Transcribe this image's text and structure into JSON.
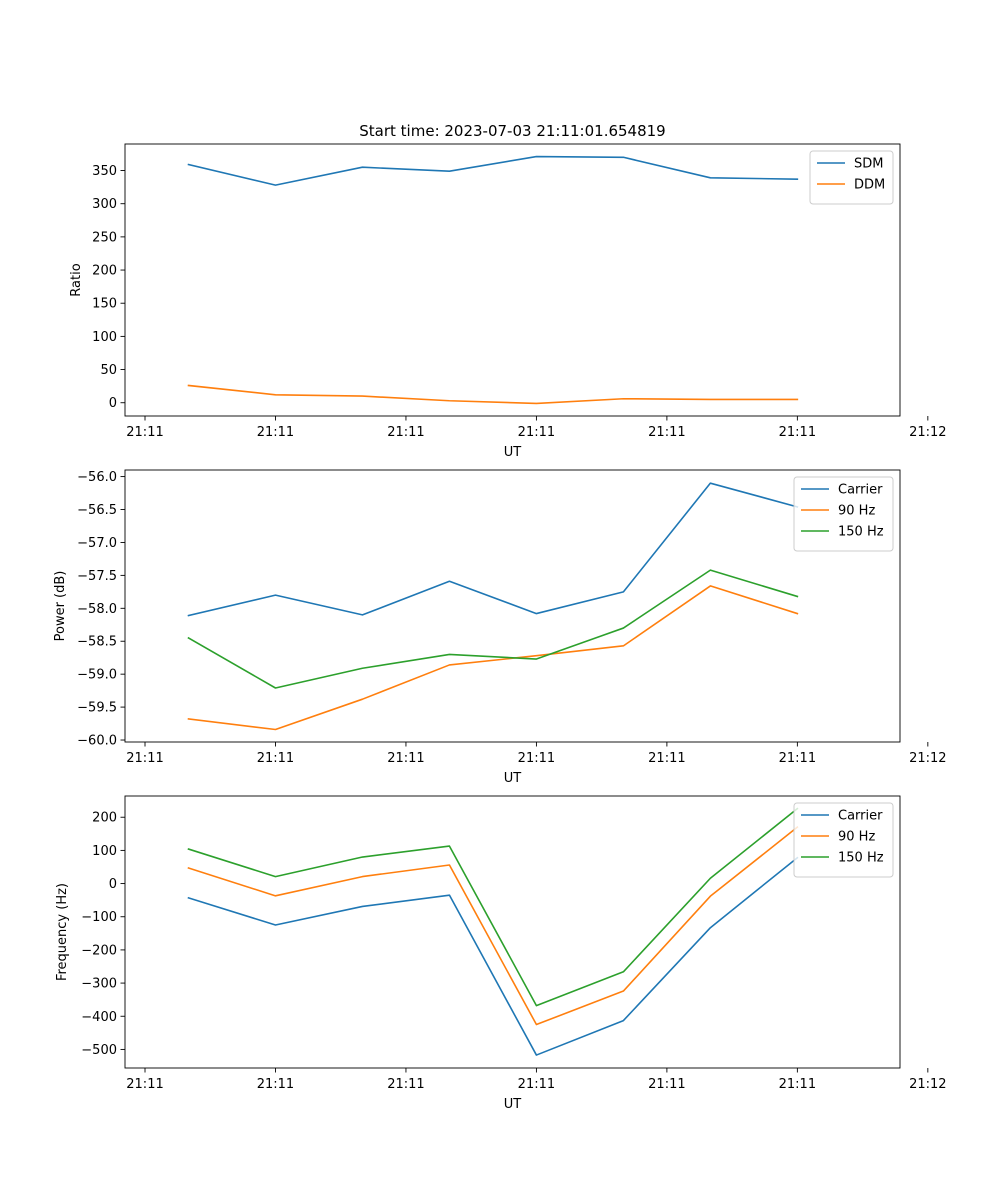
{
  "figure_title": "Start time: 2023-07-03 21:11:01.654819",
  "colors": {
    "blue": "#1f77b4",
    "orange": "#ff7f0e",
    "green": "#2ca02c"
  },
  "chart_data": [
    {
      "type": "line",
      "title": "Start time: 2023-07-03 21:11:01.654819",
      "xlabel": "UT",
      "ylabel": "Ratio",
      "x": [
        1,
        2,
        3,
        4,
        5,
        6,
        7,
        8
      ],
      "xlim": [
        0.27,
        9.18
      ],
      "x_ticks": [
        0.5,
        2,
        3.5,
        5,
        6.5,
        8,
        9.5
      ],
      "x_tick_labels": [
        "21:11",
        "21:11",
        "21:11",
        "21:11",
        "21:11",
        "21:11",
        "21:12"
      ],
      "ylim": [
        -20,
        390
      ],
      "y_ticks": [
        0,
        50,
        100,
        150,
        200,
        250,
        300,
        350
      ],
      "y_tick_labels": [
        "0",
        "50",
        "100",
        "150",
        "200",
        "250",
        "300",
        "350"
      ],
      "legend_position": "top-right",
      "grid": false,
      "series": [
        {
          "name": "SDM",
          "color": "#1f77b4",
          "values": [
            359,
            328,
            355,
            349,
            371,
            370,
            339,
            337
          ]
        },
        {
          "name": "DDM",
          "color": "#ff7f0e",
          "values": [
            26,
            12,
            10,
            3,
            -1,
            6,
            5,
            5
          ]
        }
      ]
    },
    {
      "type": "line",
      "title": "",
      "xlabel": "UT",
      "ylabel": "Power (dB)",
      "x": [
        1,
        2,
        3,
        4,
        5,
        6,
        7,
        8
      ],
      "xlim": [
        0.27,
        9.18
      ],
      "x_ticks": [
        0.5,
        2,
        3.5,
        5,
        6.5,
        8,
        9.5
      ],
      "x_tick_labels": [
        "21:11",
        "21:11",
        "21:11",
        "21:11",
        "21:11",
        "21:11",
        "21:12"
      ],
      "ylim": [
        -60.03,
        -55.9
      ],
      "y_ticks": [
        -60.0,
        -59.5,
        -59.0,
        -58.5,
        -58.0,
        -57.5,
        -57.0,
        -56.5,
        -56.0
      ],
      "y_tick_labels": [
        "−60.0",
        "−59.5",
        "−59.0",
        "−58.5",
        "−58.0",
        "−57.5",
        "−57.0",
        "−56.5",
        "−56.0"
      ],
      "legend_position": "top-right",
      "grid": false,
      "series": [
        {
          "name": "Carrier",
          "color": "#1f77b4",
          "values": [
            -58.11,
            -57.8,
            -58.1,
            -57.59,
            -58.08,
            -57.75,
            -56.1,
            -56.46
          ]
        },
        {
          "name": "90 Hz",
          "color": "#ff7f0e",
          "values": [
            -59.68,
            -59.84,
            -59.38,
            -58.86,
            -58.72,
            -58.57,
            -57.66,
            -58.08
          ]
        },
        {
          "name": "150 Hz",
          "color": "#2ca02c",
          "values": [
            -58.45,
            -59.21,
            -58.91,
            -58.7,
            -58.77,
            -58.3,
            -57.42,
            -57.82
          ]
        }
      ]
    },
    {
      "type": "line",
      "title": "",
      "xlabel": "UT",
      "ylabel": "Frequency (Hz)",
      "x": [
        1,
        2,
        3,
        4,
        5,
        6,
        7,
        8
      ],
      "xlim": [
        0.27,
        9.18
      ],
      "x_ticks": [
        0.5,
        2,
        3.5,
        5,
        6.5,
        8,
        9.5
      ],
      "x_tick_labels": [
        "21:11",
        "21:11",
        "21:11",
        "21:11",
        "21:11",
        "21:11",
        "21:12"
      ],
      "ylim": [
        -556,
        264
      ],
      "y_ticks": [
        -500,
        -400,
        -300,
        -200,
        -100,
        0,
        100,
        200
      ],
      "y_tick_labels": [
        "−500",
        "−400",
        "−300",
        "−200",
        "−100",
        "0",
        "100",
        "200"
      ],
      "legend_position": "top-right",
      "grid": false,
      "series": [
        {
          "name": "Carrier",
          "color": "#1f77b4",
          "values": [
            -43,
            -125,
            -69,
            -35,
            -517,
            -413,
            -133,
            78
          ]
        },
        {
          "name": "90 Hz",
          "color": "#ff7f0e",
          "values": [
            47,
            -37,
            21,
            56,
            -425,
            -324,
            -38,
            170
          ]
        },
        {
          "name": "150 Hz",
          "color": "#2ca02c",
          "values": [
            104,
            21,
            80,
            113,
            -368,
            -266,
            16,
            226
          ]
        }
      ]
    }
  ]
}
